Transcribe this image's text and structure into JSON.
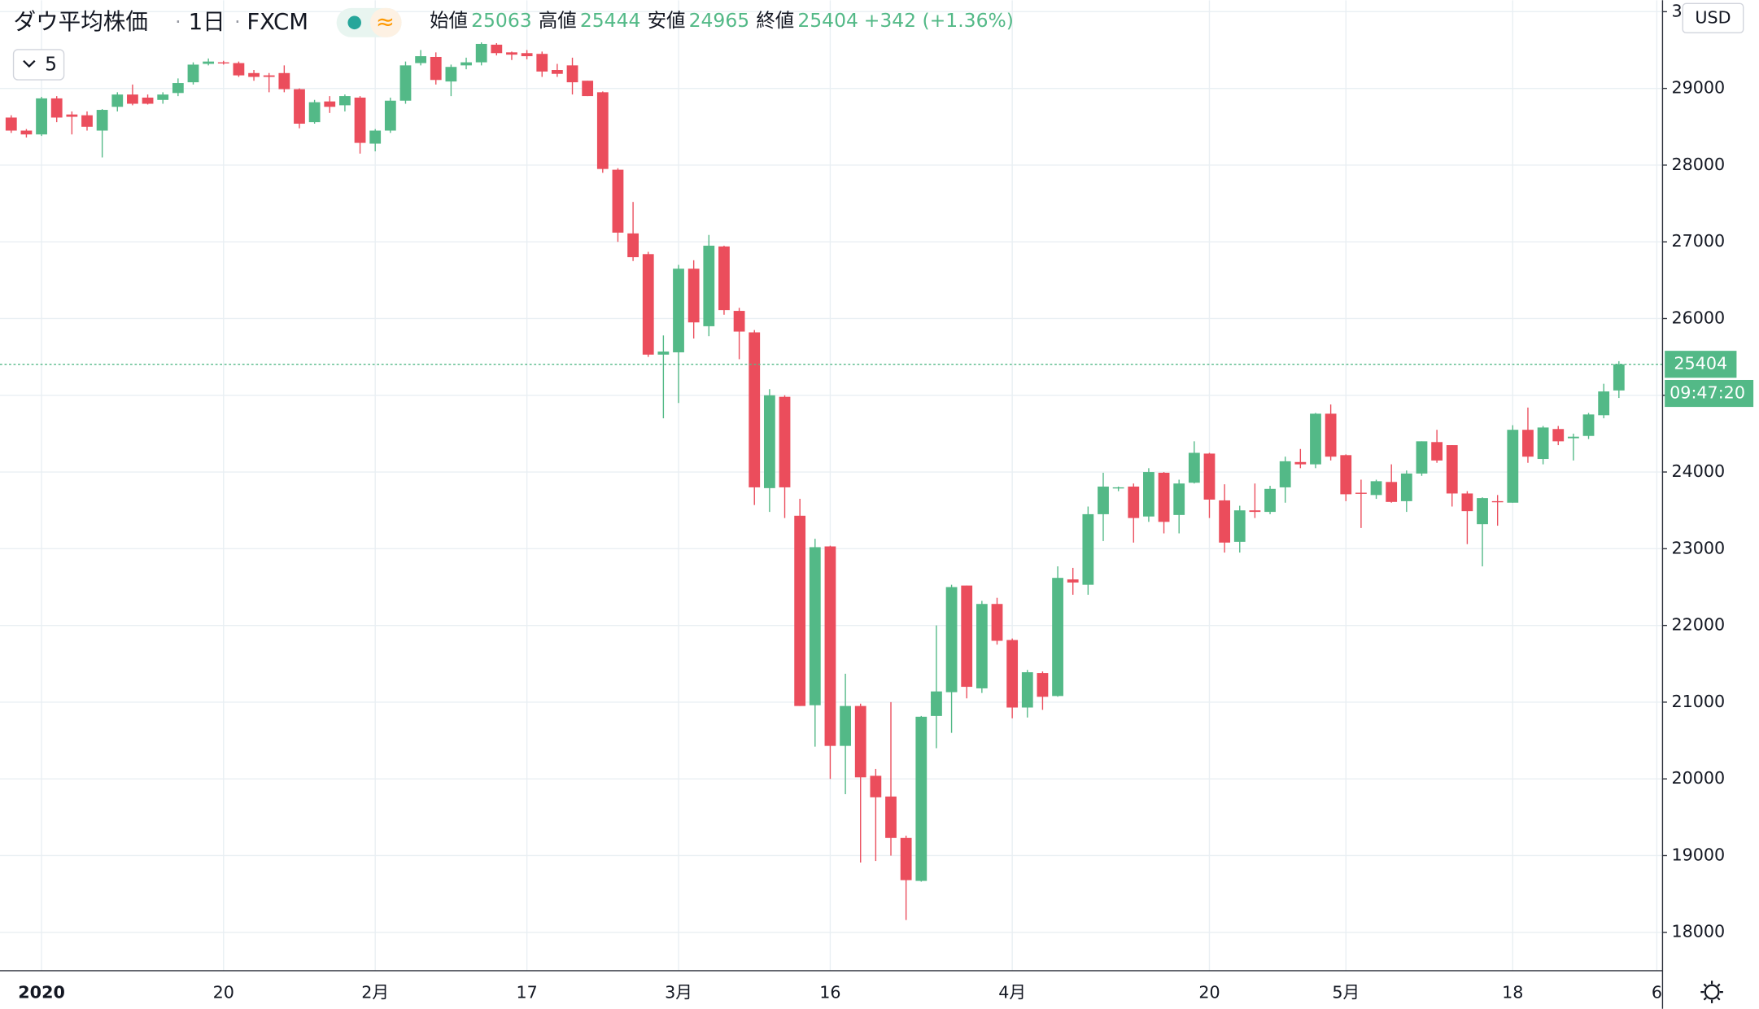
{
  "header": {
    "symbol": "ダウ平均株価",
    "interval": "1日",
    "source": "FXCM",
    "ohlc_names": [
      "始値",
      "高値",
      "安値",
      "終値"
    ],
    "change_label": "+342 (+1.36%)",
    "indicator_count": 5,
    "currency": "USD",
    "countdown": "09:47:20"
  },
  "chart_data": {
    "type": "candlestick",
    "up_color": "#53b987",
    "down_color": "#eb4d5c",
    "grid": true,
    "last_price_line": true,
    "open": [
      28620,
      28450,
      28400,
      28870,
      28660,
      28650,
      28450,
      28760,
      28920,
      28880,
      28850,
      28940,
      29080,
      29320,
      29340,
      29330,
      29200,
      29170,
      29200,
      28990,
      28560,
      28830,
      28780,
      28880,
      28280,
      28450,
      28840,
      29330,
      29410,
      29090,
      29300,
      29340,
      29570,
      29470,
      29460,
      29450,
      29240,
      29300,
      29100,
      28950,
      27940,
      27110,
      26840,
      25530,
      25560,
      26650,
      25900,
      26940,
      26100,
      25820,
      23790,
      24980,
      23430,
      20960,
      23030,
      20430,
      20950,
      20040,
      19770,
      19230,
      18670,
      20820,
      21130,
      22520,
      21180,
      22280,
      21810,
      20930,
      21380,
      21080,
      22600,
      22530,
      23450,
      23790,
      23810,
      23420,
      23990,
      23440,
      23860,
      24240,
      23630,
      23090,
      23500,
      23480,
      23800,
      24130,
      24100,
      24760,
      24220,
      23730,
      23700,
      23870,
      23620,
      23980,
      24390,
      24350,
      23720,
      23320,
      23620,
      23600,
      24550,
      24170,
      24560,
      24440,
      24470,
      24740,
      25063
    ],
    "high": [
      28650,
      28470,
      28890,
      28900,
      28700,
      28700,
      28730,
      28950,
      29050,
      28920,
      28950,
      29130,
      29340,
      29390,
      29360,
      29350,
      29240,
      29200,
      29300,
      29000,
      28850,
      28900,
      28920,
      28900,
      28470,
      28880,
      29350,
      29500,
      29470,
      29310,
      29400,
      29600,
      29590,
      29480,
      29500,
      29480,
      29320,
      29400,
      29100,
      28960,
      27960,
      27520,
      26870,
      25780,
      26700,
      26760,
      27090,
      26950,
      26140,
      25850,
      25080,
      25000,
      23650,
      23130,
      23040,
      21370,
      20980,
      20130,
      21000,
      19260,
      20820,
      22000,
      22530,
      22520,
      22320,
      22360,
      21830,
      21420,
      21400,
      22770,
      22750,
      23550,
      23990,
      23810,
      23850,
      24050,
      24000,
      23900,
      24400,
      24250,
      23840,
      23560,
      23850,
      23820,
      24200,
      24300,
      24770,
      24880,
      24230,
      23900,
      23900,
      24100,
      24020,
      24400,
      24550,
      24350,
      23750,
      23670,
      23700,
      24610,
      24840,
      24600,
      24600,
      24500,
      24770,
      25150,
      25444
    ],
    "low": [
      28420,
      28360,
      28380,
      28560,
      28400,
      28450,
      28100,
      28700,
      28780,
      28790,
      28800,
      28900,
      29050,
      29300,
      29310,
      29150,
      29100,
      28950,
      28950,
      28480,
      28540,
      28680,
      28700,
      28150,
      28180,
      28420,
      28800,
      29300,
      29050,
      28900,
      29250,
      29300,
      29430,
      29370,
      29380,
      29150,
      29150,
      28920,
      28900,
      27900,
      27000,
      26750,
      25500,
      24700,
      24900,
      25740,
      25770,
      26050,
      25470,
      23570,
      23480,
      23400,
      20950,
      20420,
      20000,
      19800,
      18910,
      18930,
      19000,
      18160,
      18660,
      20400,
      20600,
      21050,
      21120,
      21750,
      20790,
      20800,
      20900,
      21070,
      22400,
      22400,
      23100,
      23750,
      23080,
      23350,
      23200,
      23200,
      23850,
      23400,
      22950,
      22950,
      23400,
      23450,
      23600,
      24050,
      24050,
      24150,
      23620,
      23270,
      23650,
      23600,
      23480,
      23950,
      24120,
      23550,
      23060,
      22770,
      23300,
      23600,
      24120,
      24100,
      24350,
      24150,
      24430,
      24700,
      24965
    ],
    "close": [
      28450,
      28400,
      28870,
      28620,
      28630,
      28500,
      28720,
      28920,
      28800,
      28800,
      28920,
      29070,
      29310,
      29350,
      29330,
      29170,
      29150,
      29150,
      28990,
      28540,
      28820,
      28760,
      28900,
      28290,
      28450,
      28840,
      29300,
      29420,
      29110,
      29280,
      29340,
      29580,
      29460,
      29440,
      29420,
      29220,
      29190,
      29080,
      28900,
      27950,
      27120,
      26800,
      25530,
      25570,
      26650,
      25950,
      26950,
      26110,
      25830,
      23800,
      25000,
      23800,
      20950,
      23020,
      20430,
      20950,
      20020,
      19760,
      19230,
      18680,
      20810,
      21140,
      22500,
      21200,
      22280,
      21800,
      20930,
      21390,
      21070,
      22620,
      22560,
      23450,
      23810,
      23800,
      23400,
      24000,
      23350,
      23850,
      24250,
      23640,
      23080,
      23500,
      23480,
      23780,
      24140,
      24100,
      24760,
      24200,
      23710,
      23720,
      23880,
      23610,
      23980,
      24400,
      24150,
      23720,
      23490,
      23660,
      23610,
      24550,
      24200,
      24580,
      24400,
      24460,
      24750,
      25050,
      25404
    ],
    "ylim": [
      17500,
      30150
    ],
    "yticks": [
      18000,
      19000,
      20000,
      21000,
      22000,
      23000,
      24000,
      25000,
      26000,
      27000,
      28000,
      29000,
      {
        "value": 30000,
        "label": "3"
      }
    ],
    "xticks": [
      {
        "value": 2,
        "label": "2020"
      },
      {
        "value": 14,
        "label": "20"
      },
      {
        "value": 24,
        "label": "2月"
      },
      {
        "value": 34,
        "label": "17"
      },
      {
        "value": 44,
        "label": "3月"
      },
      {
        "value": 54,
        "label": "16"
      },
      {
        "value": 66,
        "label": "4月"
      },
      {
        "value": 79,
        "label": "20"
      },
      {
        "value": 88,
        "label": "5月"
      },
      {
        "value": 99,
        "label": "18"
      },
      {
        "value": 108.5,
        "label": "6"
      }
    ]
  }
}
